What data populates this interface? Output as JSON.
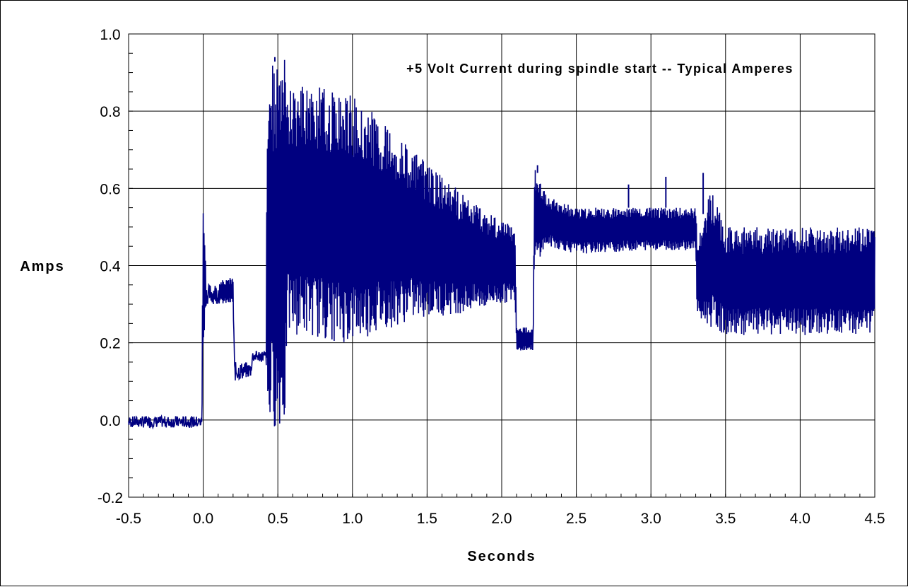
{
  "chart_data": {
    "type": "line",
    "title": "+5 Volt Current during spindle start -- Typical Amperes",
    "xlabel": "Seconds",
    "ylabel": "Amps",
    "xlim": [
      -0.5,
      4.5
    ],
    "ylim": [
      -0.2,
      1.0
    ],
    "xticks": [
      "-0.5",
      "0.0",
      "0.5",
      "1.0",
      "1.5",
      "2.0",
      "2.5",
      "3.0",
      "3.5",
      "4.0",
      "4.5"
    ],
    "yticks": [
      "-0.2",
      "0.0",
      "0.2",
      "0.4",
      "0.6",
      "0.8",
      "1.0"
    ],
    "grid": true,
    "color": "#000080",
    "series": [
      {
        "envelope": [
          {
            "x": -0.5,
            "min": -0.02,
            "max": 0.01
          },
          {
            "x": -0.01,
            "min": -0.02,
            "max": 0.01
          },
          {
            "x": 0.0,
            "min": 0.18,
            "max": 0.61
          },
          {
            "x": 0.02,
            "min": 0.3,
            "max": 0.35
          },
          {
            "x": 0.2,
            "min": 0.3,
            "max": 0.37
          },
          {
            "x": 0.21,
            "min": 0.1,
            "max": 0.15
          },
          {
            "x": 0.32,
            "min": 0.11,
            "max": 0.15
          },
          {
            "x": 0.33,
            "min": 0.15,
            "max": 0.18
          },
          {
            "x": 0.42,
            "min": 0.15,
            "max": 0.18
          },
          {
            "x": 0.43,
            "min": -0.02,
            "max": 0.92
          },
          {
            "x": 0.55,
            "min": -0.02,
            "max": 0.94
          },
          {
            "x": 0.56,
            "min": 0.22,
            "max": 0.86
          },
          {
            "x": 0.7,
            "min": 0.22,
            "max": 0.87
          },
          {
            "x": 0.9,
            "min": 0.2,
            "max": 0.85
          },
          {
            "x": 1.0,
            "min": 0.2,
            "max": 0.84
          },
          {
            "x": 1.2,
            "min": 0.23,
            "max": 0.78
          },
          {
            "x": 1.4,
            "min": 0.26,
            "max": 0.7
          },
          {
            "x": 1.6,
            "min": 0.27,
            "max": 0.63
          },
          {
            "x": 1.8,
            "min": 0.28,
            "max": 0.57
          },
          {
            "x": 2.0,
            "min": 0.3,
            "max": 0.52
          },
          {
            "x": 2.09,
            "min": 0.31,
            "max": 0.5
          },
          {
            "x": 2.1,
            "min": 0.18,
            "max": 0.24
          },
          {
            "x": 2.21,
            "min": 0.18,
            "max": 0.24
          },
          {
            "x": 2.22,
            "min": 0.4,
            "max": 0.66
          },
          {
            "x": 2.3,
            "min": 0.45,
            "max": 0.58
          },
          {
            "x": 2.5,
            "min": 0.43,
            "max": 0.55
          },
          {
            "x": 3.0,
            "min": 0.44,
            "max": 0.55
          },
          {
            "x": 3.3,
            "min": 0.44,
            "max": 0.55
          },
          {
            "x": 3.31,
            "min": 0.25,
            "max": 0.48
          },
          {
            "x": 3.4,
            "min": 0.24,
            "max": 0.6
          },
          {
            "x": 3.5,
            "min": 0.22,
            "max": 0.5
          },
          {
            "x": 4.0,
            "min": 0.22,
            "max": 0.5
          },
          {
            "x": 4.5,
            "min": 0.22,
            "max": 0.5
          }
        ],
        "spikes": [
          {
            "x": 0.0,
            "y": 0.61
          },
          {
            "x": 0.48,
            "y": 0.94
          },
          {
            "x": 2.24,
            "y": 0.66
          },
          {
            "x": 2.85,
            "y": 0.61
          },
          {
            "x": 3.1,
            "y": 0.63
          },
          {
            "x": 3.35,
            "y": 0.64
          }
        ]
      }
    ]
  }
}
